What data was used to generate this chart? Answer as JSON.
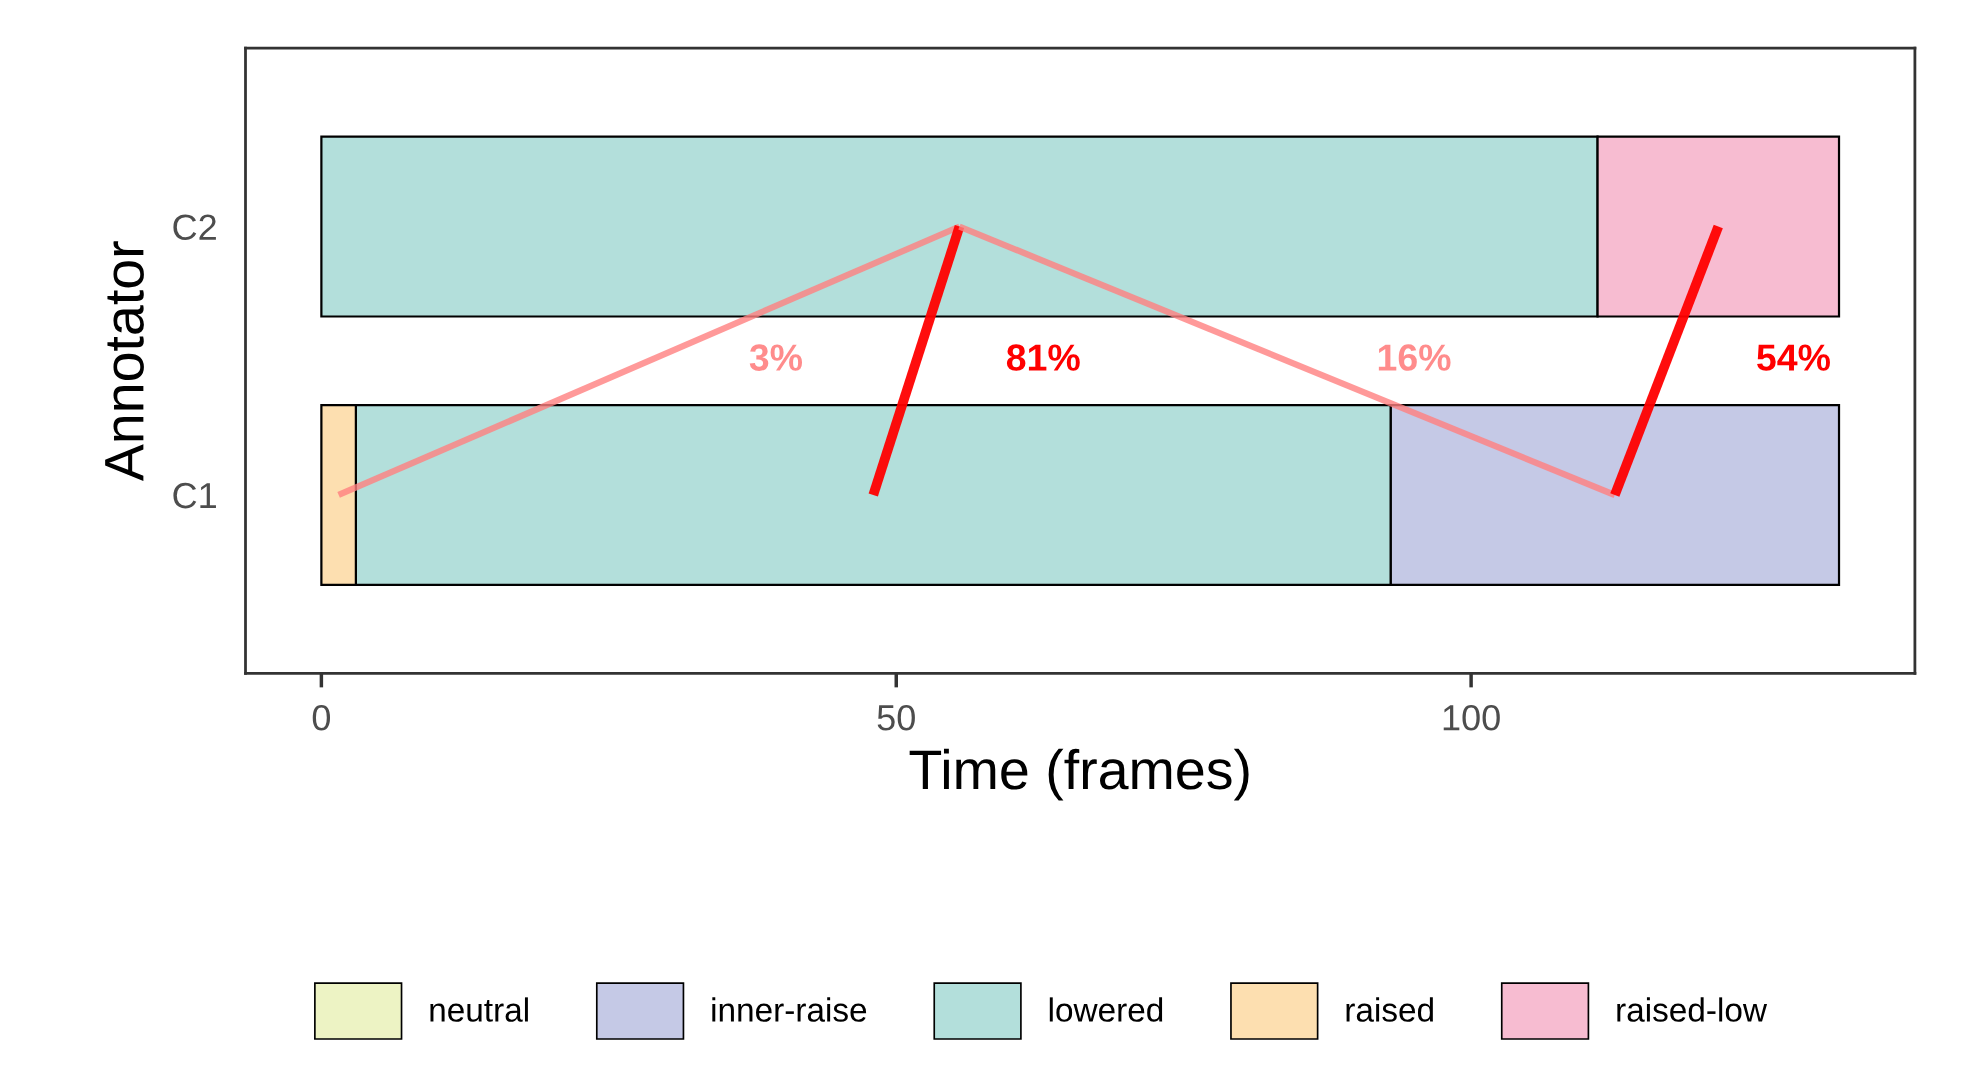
{
  "chart_data": {
    "type": "bar",
    "orientation": "horizontal",
    "categories": [
      "C2",
      "C1"
    ],
    "xlabel": "Time (frames)",
    "ylabel": "Annotator",
    "xlim": [
      -6.6,
      138.6
    ],
    "xticks": [
      0,
      50,
      100
    ],
    "legend": "bottom",
    "grid": false,
    "series": [
      {
        "name": "neutral",
        "color": "#edf3c4",
        "values": [
          null,
          null
        ],
        "base": [
          null,
          null
        ]
      },
      {
        "name": "inner-raise",
        "color": "#c5c9e6",
        "values": [
          null,
          39
        ],
        "base": [
          null,
          93
        ]
      },
      {
        "name": "lowered",
        "color": "#b3dfdb",
        "values": [
          111,
          90
        ],
        "base": [
          0,
          3
        ]
      },
      {
        "name": "raised",
        "color": "#fddfb0",
        "values": [
          null,
          3
        ],
        "base": [
          null,
          0
        ]
      },
      {
        "name": "raised-low",
        "color": "#f7bcd1",
        "values": [
          21,
          null
        ],
        "base": [
          111,
          null
        ]
      },
      {
        "type": "line",
        "color": "#ff8080",
        "values": [
          55.5,
          1.5
        ]
      },
      {
        "type": "line",
        "color": "#ff0000",
        "values": [
          55.5,
          48
        ]
      },
      {
        "type": "line",
        "color": "#ff8080",
        "values": [
          55.5,
          112.5
        ]
      },
      {
        "type": "line",
        "color": "#ff0000",
        "values": [
          121.5,
          112.5
        ]
      }
    ],
    "annotations": [
      "3%",
      "81%",
      "16%",
      "54%"
    ]
  }
}
